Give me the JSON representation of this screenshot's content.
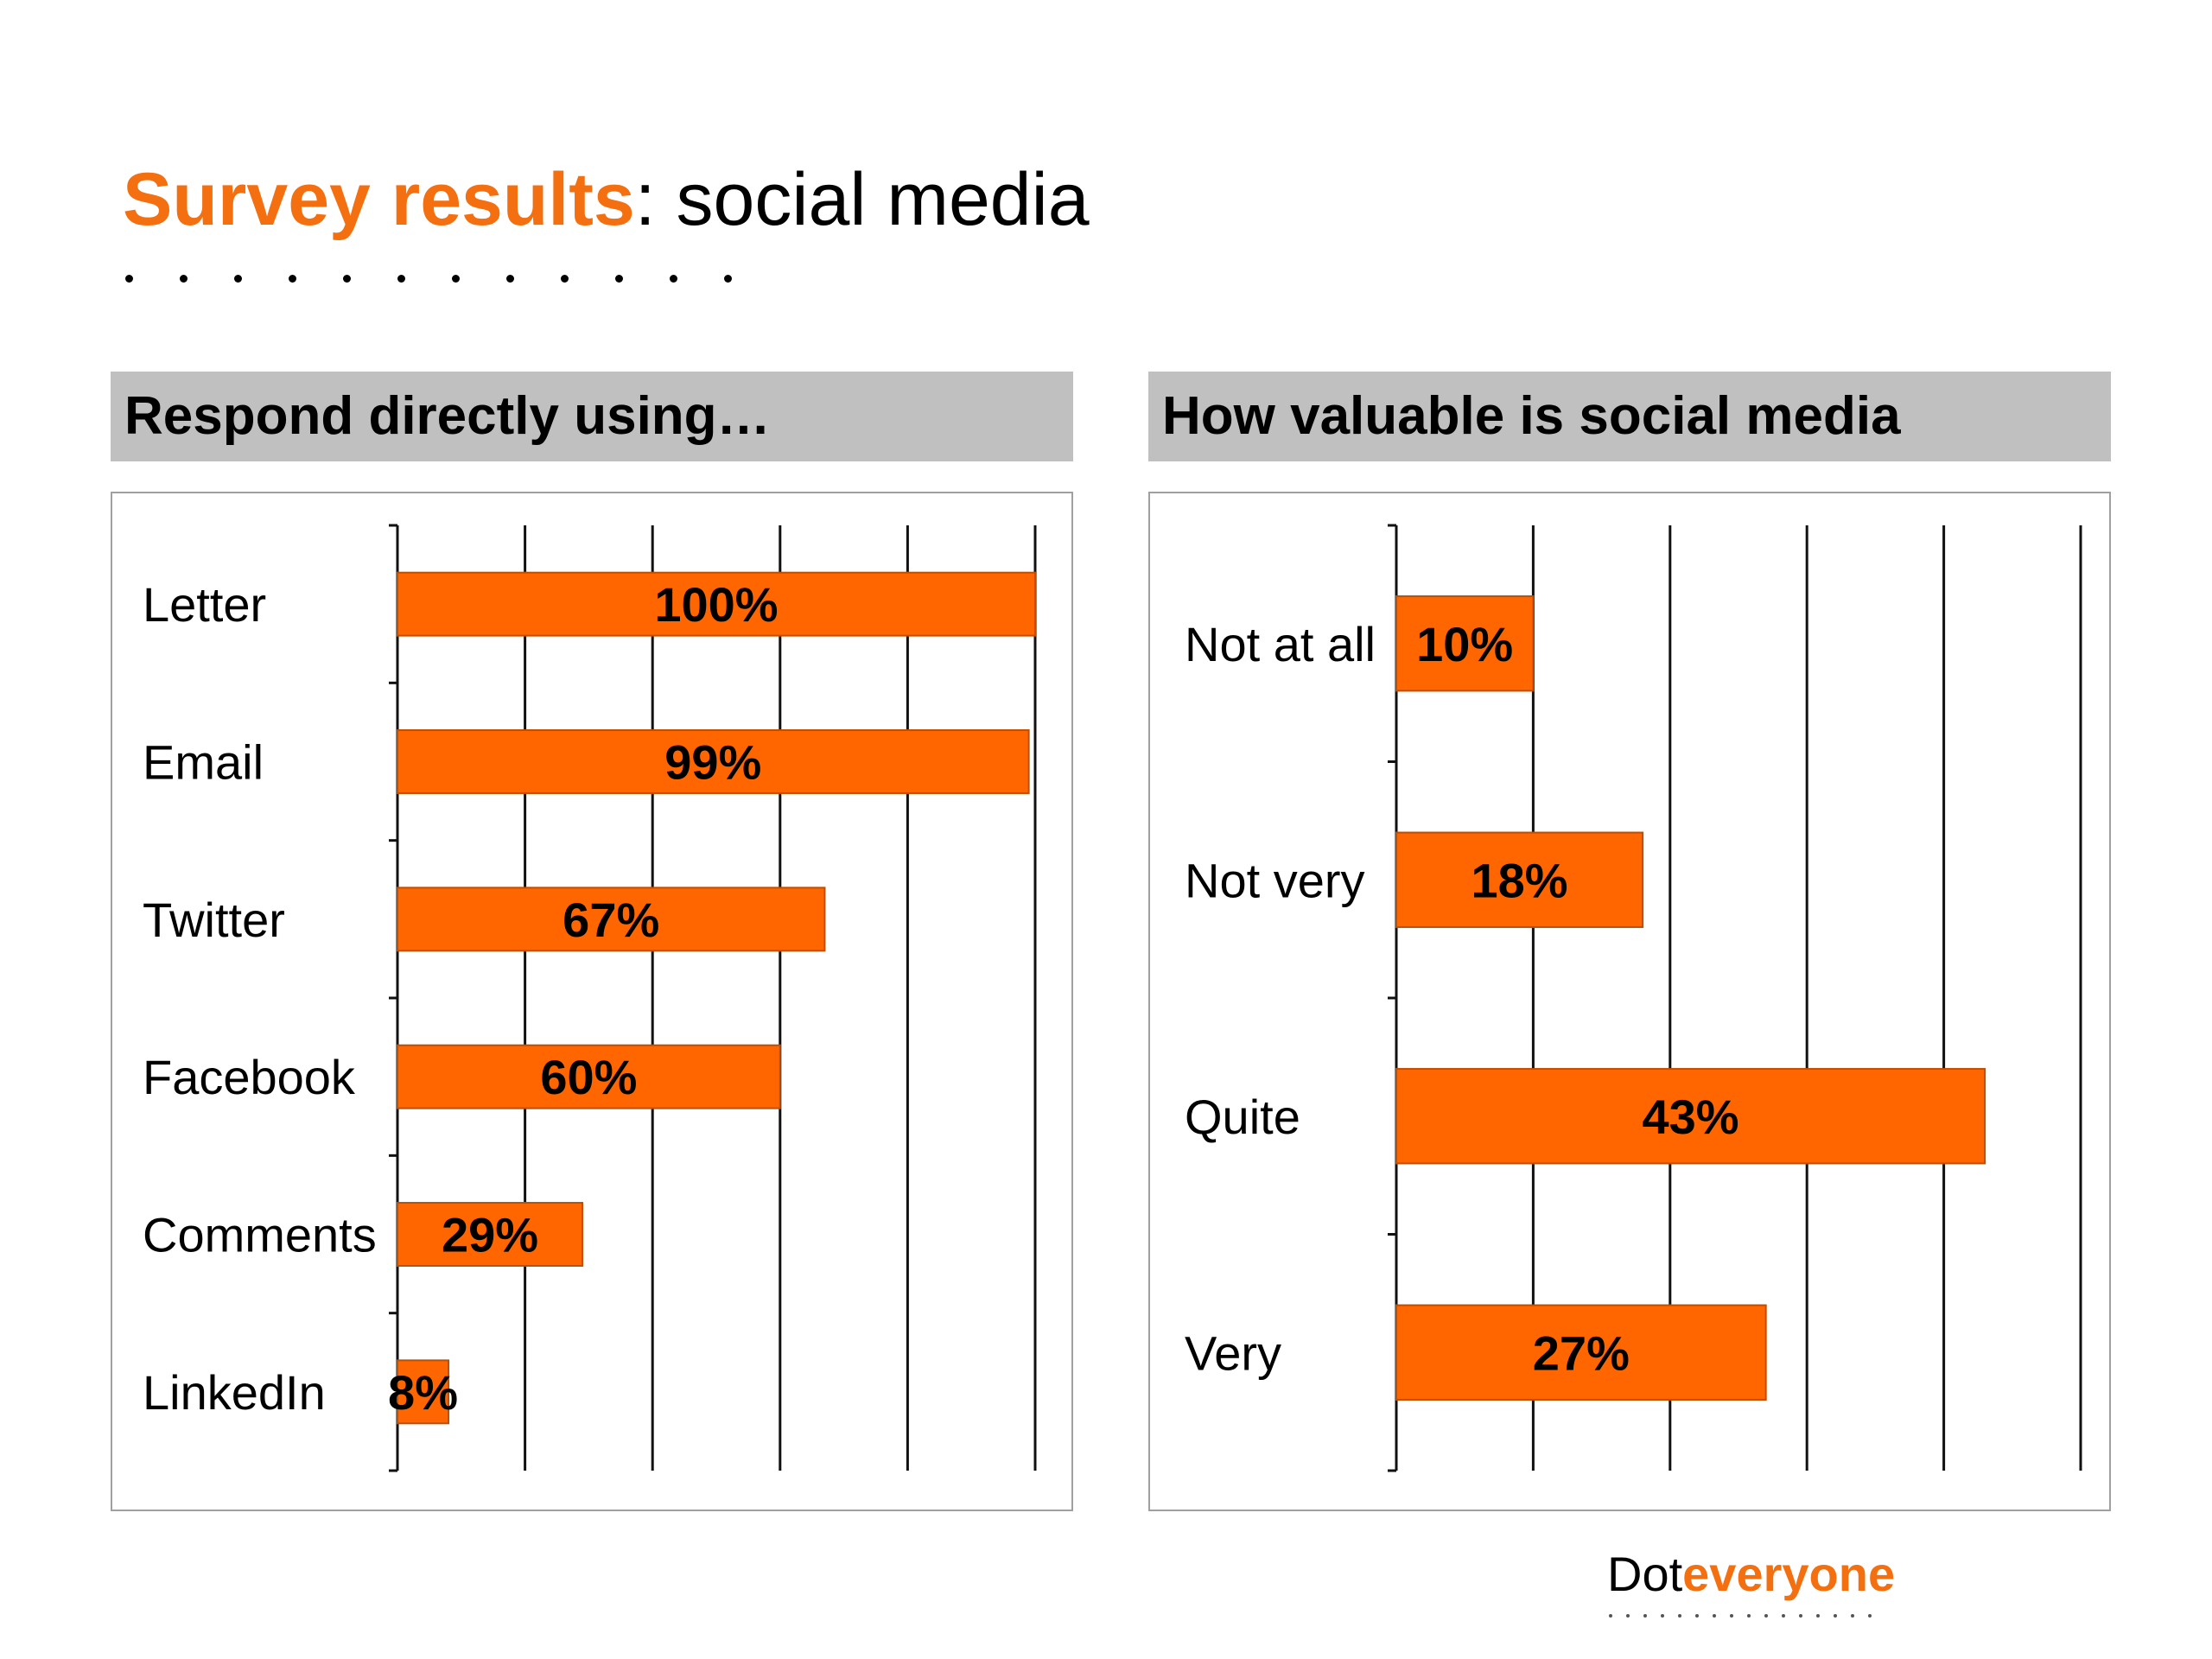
{
  "slide": {
    "title_accent": "Survey results",
    "title_rest": ": social media",
    "dot_count": 12
  },
  "colors": {
    "accent": "#f36f10",
    "bar": "#ff6600",
    "header_bg": "#c0c0c0"
  },
  "left_panel": {
    "header": "Respond directly using…"
  },
  "right_panel": {
    "header": "How valuable is social media"
  },
  "chart_data": [
    {
      "type": "bar",
      "orientation": "horizontal",
      "title": "Respond directly using…",
      "categories": [
        "Letter",
        "Email",
        "Twitter",
        "Facebook",
        "Comments",
        "LinkedIn"
      ],
      "values": [
        100,
        99,
        67,
        60,
        29,
        8
      ],
      "value_labels": [
        "100%",
        "99%",
        "67%",
        "60%",
        "29%",
        "8%"
      ],
      "xlim": [
        0,
        100
      ],
      "gridlines": 5,
      "grid": true,
      "legend": "none"
    },
    {
      "type": "bar",
      "orientation": "horizontal",
      "title": "How valuable is social media",
      "categories": [
        "Not at all",
        "Not very",
        "Quite",
        "Very"
      ],
      "values": [
        10,
        18,
        43,
        27
      ],
      "value_labels": [
        "10%",
        "18%",
        "43%",
        "27%"
      ],
      "xlim": [
        0,
        50
      ],
      "gridlines": 5,
      "grid": true,
      "legend": "none"
    }
  ],
  "logo": {
    "part1": "Dot",
    "part2": "everyone",
    "dot_count": 16
  }
}
